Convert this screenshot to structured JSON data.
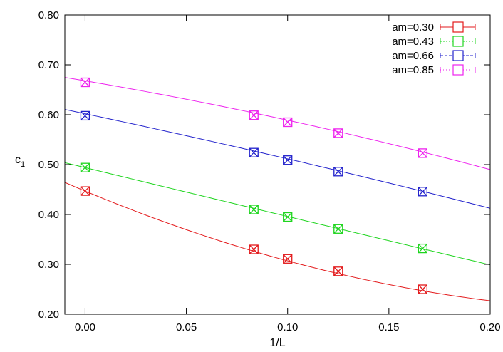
{
  "chart_data": {
    "type": "scatter",
    "title": "",
    "xlabel": "1/L",
    "ylabel": "c1",
    "ylabel_main": "c",
    "ylabel_sub": "1",
    "xlim": [
      -0.01,
      0.2
    ],
    "ylim": [
      0.2,
      0.8
    ],
    "x_ticks": [
      0.0,
      0.05,
      0.1,
      0.15,
      0.2
    ],
    "x_tick_labels": [
      "0.00",
      "0.05",
      "0.10",
      "0.15",
      "0.20"
    ],
    "y_ticks": [
      0.2,
      0.3,
      0.4,
      0.5,
      0.6,
      0.7,
      0.8
    ],
    "y_tick_labels": [
      "0.20",
      "0.30",
      "0.40",
      "0.50",
      "0.60",
      "0.70",
      "0.80"
    ],
    "grid": false,
    "legend_position": "top-right",
    "series": [
      {
        "name": "am=0.30",
        "color": "#e31a1c",
        "points": [
          [
            0.0,
            0.447
          ],
          [
            0.0833,
            0.33
          ],
          [
            0.1,
            0.311
          ],
          [
            0.125,
            0.286
          ],
          [
            0.1667,
            0.25
          ]
        ],
        "fit": [
          0.447,
          -1.7,
          3.0
        ]
      },
      {
        "name": "am=0.43",
        "color": "#1fd51f",
        "points": [
          [
            0.0,
            0.494
          ],
          [
            0.0833,
            0.41
          ],
          [
            0.1,
            0.395
          ],
          [
            0.125,
            0.371
          ],
          [
            0.1667,
            0.332
          ]
        ],
        "fit": [
          0.494,
          -0.985,
          0.05
        ]
      },
      {
        "name": "am=0.66",
        "color": "#2222cc",
        "points": [
          [
            0.0,
            0.598
          ],
          [
            0.0833,
            0.524
          ],
          [
            0.1,
            0.509
          ],
          [
            0.125,
            0.486
          ],
          [
            0.1667,
            0.446
          ]
        ],
        "fit": [
          0.602,
          -0.86,
          -0.44
        ]
      },
      {
        "name": "am=0.85",
        "color": "#ee22ee",
        "points": [
          [
            0.0,
            0.665
          ],
          [
            0.0833,
            0.599
          ],
          [
            0.1,
            0.585
          ],
          [
            0.125,
            0.563
          ],
          [
            0.1667,
            0.523
          ]
        ],
        "fit": [
          0.668,
          -0.69,
          -1.0
        ]
      }
    ]
  }
}
